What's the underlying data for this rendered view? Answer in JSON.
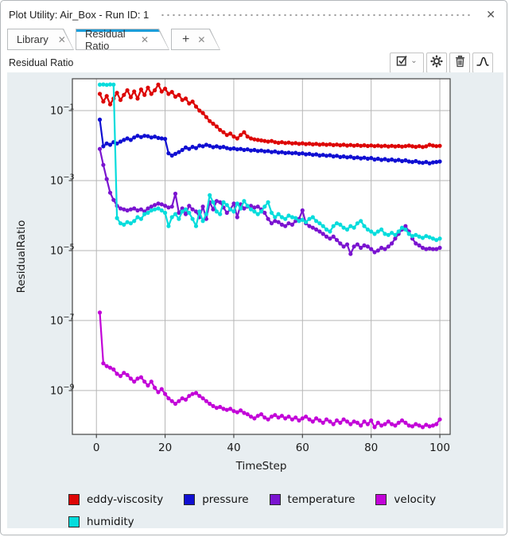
{
  "window": {
    "title": "Plot Utility: Air_Box - Run ID: 1",
    "close_glyph": "✕"
  },
  "tabs": [
    {
      "label": "Library",
      "close_glyph": "✕",
      "active": false
    },
    {
      "label": "Residual Ratio",
      "close_glyph": "✕",
      "active": true
    },
    {
      "label": "+",
      "close_glyph": "✕",
      "active": false
    }
  ],
  "toolbar": {
    "title": "Residual Ratio",
    "buttons": [
      {
        "name": "select-curves",
        "icon": "checkbox-check-icon",
        "chevron": "⌄"
      },
      {
        "name": "settings",
        "icon": "gear-icon"
      },
      {
        "name": "delete",
        "icon": "trash-icon"
      },
      {
        "name": "curve-style",
        "icon": "curve-icon"
      }
    ]
  },
  "chart_data": {
    "type": "line",
    "title": "",
    "xlabel": "TimeStep",
    "ylabel": "ResidualRatio",
    "x_ticks": [
      0,
      20,
      40,
      60,
      80,
      100
    ],
    "y_tick_exponents": [
      -1,
      -3,
      -5,
      -7,
      -9
    ],
    "xlim": [
      -7,
      103
    ],
    "ylim": [
      5.6e-11,
      0.81
    ],
    "y_scale": "log",
    "grid": true,
    "legend_position": "below",
    "colors": {
      "grid": "#b6b6b6",
      "axis": "#444444",
      "plot_bg": "#ffffff",
      "panel_bg": "#e8eef1"
    },
    "x_start": 1,
    "series": [
      {
        "name": "eddy-viscosity",
        "color": "#dd0606",
        "values": [
          0.3,
          0.18,
          0.26,
          0.15,
          0.22,
          0.32,
          0.2,
          0.28,
          0.38,
          0.24,
          0.35,
          0.22,
          0.4,
          0.28,
          0.45,
          0.3,
          0.38,
          0.55,
          0.35,
          0.42,
          0.3,
          0.34,
          0.25,
          0.28,
          0.2,
          0.22,
          0.16,
          0.18,
          0.13,
          0.1,
          0.085,
          0.065,
          0.05,
          0.042,
          0.035,
          0.028,
          0.024,
          0.02,
          0.022,
          0.018,
          0.016,
          0.02,
          0.024,
          0.018,
          0.016,
          0.015,
          0.0145,
          0.014,
          0.0135,
          0.013,
          0.0135,
          0.0125,
          0.012,
          0.0125,
          0.0118,
          0.0122,
          0.0115,
          0.0118,
          0.0112,
          0.0116,
          0.011,
          0.0114,
          0.0108,
          0.0112,
          0.0106,
          0.011,
          0.0105,
          0.0109,
          0.0103,
          0.0107,
          0.0102,
          0.0106,
          0.01,
          0.0104,
          0.0099,
          0.0103,
          0.0098,
          0.0102,
          0.0097,
          0.0101,
          0.0096,
          0.01,
          0.0095,
          0.0099,
          0.0094,
          0.0098,
          0.0094,
          0.0097,
          0.0093,
          0.0096,
          0.01,
          0.0095,
          0.0092,
          0.0096,
          0.0091,
          0.0095,
          0.0105,
          0.01,
          0.0096,
          0.0098
        ]
      },
      {
        "name": "pressure",
        "color": "#100fd2",
        "values": [
          0.055,
          0.0095,
          0.0115,
          0.0105,
          0.0125,
          0.0115,
          0.013,
          0.0145,
          0.016,
          0.0145,
          0.017,
          0.019,
          0.0175,
          0.019,
          0.0185,
          0.017,
          0.018,
          0.0165,
          0.016,
          0.0155,
          0.006,
          0.0052,
          0.0058,
          0.0065,
          0.0075,
          0.0088,
          0.008,
          0.0092,
          0.0085,
          0.01,
          0.0095,
          0.0105,
          0.0098,
          0.009,
          0.0095,
          0.0088,
          0.0092,
          0.0085,
          0.008,
          0.0083,
          0.0078,
          0.008,
          0.0075,
          0.0078,
          0.0072,
          0.0075,
          0.007,
          0.0072,
          0.0068,
          0.007,
          0.0065,
          0.0068,
          0.0063,
          0.0065,
          0.0061,
          0.0063,
          0.006,
          0.0062,
          0.0058,
          0.006,
          0.0056,
          0.0058,
          0.0054,
          0.0056,
          0.0052,
          0.0054,
          0.0051,
          0.0053,
          0.0049,
          0.0051,
          0.0047,
          0.0049,
          0.0046,
          0.0048,
          0.0044,
          0.0046,
          0.0043,
          0.0045,
          0.0042,
          0.0044,
          0.004,
          0.0042,
          0.0039,
          0.0041,
          0.0038,
          0.004,
          0.0037,
          0.0039,
          0.0036,
          0.0038,
          0.0035,
          0.0034,
          0.0036,
          0.0033,
          0.0032,
          0.0034,
          0.0031,
          0.0033,
          0.0034,
          0.0035
        ]
      },
      {
        "name": "temperature",
        "color": "#7a14d0",
        "values": [
          0.008,
          0.0028,
          0.0011,
          0.00045,
          0.00028,
          0.00019,
          0.00016,
          0.00015,
          0.00014,
          0.00015,
          0.00016,
          0.00014,
          0.00015,
          0.00013,
          0.00016,
          0.00018,
          0.0002,
          0.00022,
          0.00021,
          0.00019,
          0.00017,
          0.00018,
          0.00042,
          0.00012,
          0.00016,
          0.00011,
          0.00019,
          0.00015,
          0.00013,
          9e-05,
          0.00018,
          8e-05,
          0.00024,
          0.00015,
          0.00026,
          0.00024,
          0.00017,
          0.00012,
          0.00015,
          0.00022,
          9e-05,
          0.00021,
          0.00016,
          0.00018,
          0.00019,
          0.00017,
          0.00018,
          0.00015,
          0.00012,
          8e-05,
          6e-05,
          7e-05,
          6.5e-05,
          5.5e-05,
          5e-05,
          6e-05,
          5.5e-05,
          7e-05,
          8e-05,
          0.00014,
          6e-05,
          5e-05,
          4.5e-05,
          4e-05,
          3.5e-05,
          3e-05,
          2.5e-05,
          2.2e-05,
          2.5e-05,
          2e-05,
          1.6e-05,
          1.3e-05,
          1.5e-05,
          8e-06,
          1.3e-05,
          1.5e-05,
          1.2e-05,
          1.4e-05,
          1.3e-05,
          1.1e-05,
          9e-06,
          1e-05,
          1.2e-05,
          1.1e-05,
          1.3e-05,
          1.6e-05,
          2.2e-05,
          3e-05,
          4e-05,
          5e-05,
          3.5e-05,
          2.2e-05,
          1.6e-05,
          1.4e-05,
          1.2e-05,
          1.1e-05,
          1.15e-05,
          1.1e-05,
          1.1e-05,
          1.2e-05
        ]
      },
      {
        "name": "velocity",
        "color": "#c203d8",
        "values": [
          1.7e-07,
          6e-09,
          5e-09,
          4.5e-09,
          4e-09,
          3e-09,
          2.6e-09,
          3.2e-09,
          2.8e-09,
          2.2e-09,
          1.8e-09,
          2.2e-09,
          2.4e-09,
          1.8e-09,
          1.4e-09,
          1.8e-09,
          1.2e-09,
          9e-10,
          1.1e-09,
          8e-10,
          6e-10,
          5e-10,
          4.2e-10,
          5e-10,
          6e-10,
          5.5e-10,
          7e-10,
          8e-10,
          8.5e-10,
          7e-10,
          6e-10,
          5e-10,
          4.2e-10,
          3.6e-10,
          3.2e-10,
          3.4e-10,
          3e-10,
          2.8e-10,
          3e-10,
          2.6e-10,
          2.4e-10,
          2.7e-10,
          2.3e-10,
          2.1e-10,
          1.8e-10,
          1.6e-10,
          1.9e-10,
          2.1e-10,
          1.7e-10,
          1.5e-10,
          1.8e-10,
          2e-10,
          1.7e-10,
          1.9e-10,
          1.6e-10,
          1.8e-10,
          1.5e-10,
          1.7e-10,
          1.4e-10,
          1.6e-10,
          1.8e-10,
          1.5e-10,
          1.3e-10,
          1.6e-10,
          1.4e-10,
          1.2e-10,
          1.5e-10,
          1.3e-10,
          1.1e-10,
          1.4e-10,
          1.2e-10,
          1.5e-10,
          1.3e-10,
          1.1e-10,
          1.3e-10,
          1.2e-10,
          1e-10,
          1.3e-10,
          1.1e-10,
          1.4e-10,
          9e-11,
          1.2e-10,
          1e-10,
          1.1e-10,
          1.3e-10,
          1.1e-10,
          1e-10,
          1.2e-10,
          1.4e-10,
          1.2e-10,
          1e-10,
          9.5e-11,
          1.1e-10,
          1e-10,
          9e-11,
          1.05e-10,
          9.5e-11,
          1e-10,
          1.1e-10,
          1.5e-10
        ]
      },
      {
        "name": "humidity",
        "color": "#06dcdc",
        "values": [
          0.55,
          0.56,
          0.54,
          0.56,
          0.55,
          8.5e-05,
          6e-05,
          5.5e-05,
          6.5e-05,
          6e-05,
          7e-05,
          9e-05,
          8e-05,
          0.00011,
          0.00012,
          0.00014,
          0.00015,
          0.00016,
          0.00014,
          0.00012,
          5e-05,
          9e-05,
          0.00011,
          8e-05,
          0.00013,
          0.00015,
          0.00012,
          8e-05,
          5e-05,
          0.00013,
          7e-05,
          0.00011,
          0.00038,
          0.00024,
          0.00013,
          0.00011,
          0.00024,
          0.0002,
          0.00015,
          0.00013,
          0.00022,
          0.00016,
          0.00026,
          0.00019,
          0.00015,
          0.00013,
          0.00011,
          0.00013,
          0.00018,
          0.00024,
          0.00012,
          9e-05,
          0.00011,
          9e-05,
          8e-05,
          0.0001,
          9e-05,
          8.5e-05,
          7e-05,
          7.5e-05,
          6.5e-05,
          8e-05,
          9e-05,
          7e-05,
          6e-05,
          5e-05,
          4e-05,
          3.5e-05,
          5e-05,
          6e-05,
          5.5e-05,
          4.5e-05,
          4e-05,
          5e-05,
          4.5e-05,
          6e-05,
          7e-05,
          5e-05,
          4e-05,
          3.5e-05,
          3e-05,
          3.5e-05,
          4e-05,
          3e-05,
          2.8e-05,
          3.2e-05,
          2.8e-05,
          3.5e-05,
          4.5e-05,
          4e-05,
          3e-05,
          2.6e-05,
          2.8e-05,
          2.5e-05,
          2.3e-05,
          2.6e-05,
          2.4e-05,
          2.2e-05,
          2e-05,
          2.2e-05
        ]
      }
    ]
  }
}
